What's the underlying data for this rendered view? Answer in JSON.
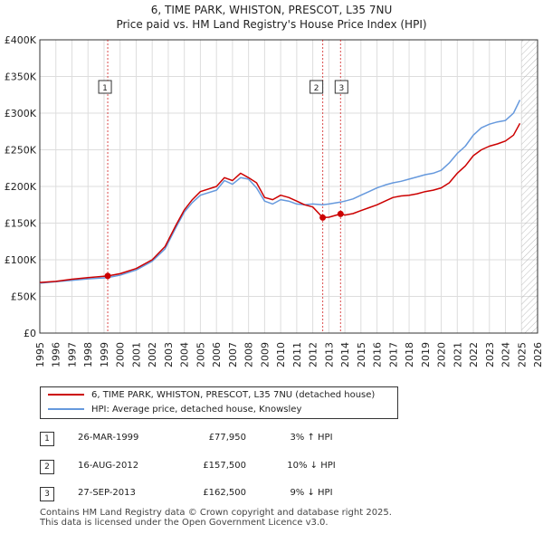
{
  "title_line1": "6, TIME PARK, WHISTON, PRESCOT, L35 7NU",
  "title_line2": "Price paid vs. HM Land Registry's House Price Index (HPI)",
  "colors": {
    "property": "#cc0000",
    "hpi": "#6699dd",
    "grid": "#dddddd",
    "axis": "#333333",
    "hatch": "#aaaaaa",
    "marker": "#cc0000"
  },
  "legend": {
    "property_label": "6, TIME PARK, WHISTON, PRESCOT, L35 7NU (detached house)",
    "hpi_label": "HPI: Average price, detached house, Knowsley"
  },
  "sales": [
    {
      "num": "1",
      "date": "26-MAR-1999",
      "price": "£77,950",
      "hpi": "3% ↑ HPI"
    },
    {
      "num": "2",
      "date": "16-AUG-2012",
      "price": "£157,500",
      "hpi": "10% ↓ HPI"
    },
    {
      "num": "3",
      "date": "27-SEP-2013",
      "price": "£162,500",
      "hpi": "9% ↓ HPI"
    }
  ],
  "footer": {
    "line1": "Contains HM Land Registry data © Crown copyright and database right 2025.",
    "line2": "This data is licensed under the Open Government Licence v3.0."
  },
  "chart_data": {
    "type": "line",
    "title": "6, TIME PARK, WHISTON, PRESCOT, L35 7NU — Price paid vs. HM Land Registry's House Price Index (HPI)",
    "xlabel": "",
    "ylabel": "",
    "xlim": [
      1995,
      2026
    ],
    "ylim": [
      0,
      400000
    ],
    "x_ticks": [
      "1995",
      "1996",
      "1997",
      "1998",
      "1999",
      "2000",
      "2001",
      "2002",
      "2003",
      "2004",
      "2005",
      "2006",
      "2007",
      "2008",
      "2009",
      "2010",
      "2011",
      "2012",
      "2013",
      "2014",
      "2015",
      "2016",
      "2017",
      "2018",
      "2019",
      "2020",
      "2021",
      "2022",
      "2023",
      "2024",
      "2025",
      "2026"
    ],
    "y_ticks": [
      {
        "value": 0,
        "label": "£0"
      },
      {
        "value": 50000,
        "label": "£50K"
      },
      {
        "value": 100000,
        "label": "£100K"
      },
      {
        "value": 150000,
        "label": "£150K"
      },
      {
        "value": 200000,
        "label": "£200K"
      },
      {
        "value": 250000,
        "label": "£250K"
      },
      {
        "value": 300000,
        "label": "£300K"
      },
      {
        "value": 350000,
        "label": "£350K"
      },
      {
        "value": 400000,
        "label": "£400K"
      }
    ],
    "grid": true,
    "hatched_after": 2025.0,
    "series": [
      {
        "name": "6, TIME PARK, WHISTON, PRESCOT, L35 7NU (detached house)",
        "color_key": "property",
        "points": [
          [
            1995.0,
            69000
          ],
          [
            1996.0,
            70500
          ],
          [
            1997.0,
            73500
          ],
          [
            1998.0,
            75500
          ],
          [
            1999.23,
            77950
          ],
          [
            2000.0,
            81000
          ],
          [
            2001.0,
            88000
          ],
          [
            2002.0,
            100000
          ],
          [
            2002.8,
            118000
          ],
          [
            2003.5,
            148000
          ],
          [
            2004.0,
            168000
          ],
          [
            2004.5,
            182000
          ],
          [
            2005.0,
            193000
          ],
          [
            2006.0,
            200000
          ],
          [
            2006.5,
            212000
          ],
          [
            2007.0,
            208000
          ],
          [
            2007.5,
            218000
          ],
          [
            2008.0,
            212000
          ],
          [
            2008.5,
            205000
          ],
          [
            2009.0,
            185000
          ],
          [
            2009.5,
            182000
          ],
          [
            2010.0,
            188000
          ],
          [
            2010.5,
            185000
          ],
          [
            2011.0,
            180000
          ],
          [
            2011.5,
            175000
          ],
          [
            2012.0,
            172000
          ],
          [
            2012.62,
            157500
          ],
          [
            2013.0,
            158000
          ],
          [
            2013.73,
            162500
          ],
          [
            2014.0,
            161000
          ],
          [
            2014.5,
            163000
          ],
          [
            2015.0,
            167000
          ],
          [
            2015.5,
            171000
          ],
          [
            2016.0,
            175000
          ],
          [
            2016.5,
            180000
          ],
          [
            2017.0,
            185000
          ],
          [
            2017.5,
            187000
          ],
          [
            2018.0,
            188000
          ],
          [
            2018.5,
            190000
          ],
          [
            2019.0,
            193000
          ],
          [
            2019.5,
            195000
          ],
          [
            2020.0,
            198000
          ],
          [
            2020.5,
            205000
          ],
          [
            2021.0,
            218000
          ],
          [
            2021.5,
            228000
          ],
          [
            2022.0,
            242000
          ],
          [
            2022.5,
            250000
          ],
          [
            2023.0,
            255000
          ],
          [
            2023.5,
            258000
          ],
          [
            2024.0,
            262000
          ],
          [
            2024.5,
            270000
          ],
          [
            2024.9,
            286000
          ]
        ]
      },
      {
        "name": "HPI: Average price, detached house, Knowsley",
        "color_key": "hpi",
        "points": [
          [
            1995.0,
            68000
          ],
          [
            1996.0,
            70000
          ],
          [
            1997.0,
            72000
          ],
          [
            1998.0,
            74000
          ],
          [
            1999.23,
            75700
          ],
          [
            2000.0,
            79000
          ],
          [
            2001.0,
            86000
          ],
          [
            2002.0,
            98000
          ],
          [
            2002.8,
            115000
          ],
          [
            2003.5,
            145000
          ],
          [
            2004.0,
            165000
          ],
          [
            2004.5,
            178000
          ],
          [
            2005.0,
            188000
          ],
          [
            2006.0,
            195000
          ],
          [
            2006.5,
            208000
          ],
          [
            2007.0,
            203000
          ],
          [
            2007.5,
            212000
          ],
          [
            2008.0,
            210000
          ],
          [
            2008.5,
            198000
          ],
          [
            2009.0,
            180000
          ],
          [
            2009.5,
            176000
          ],
          [
            2010.0,
            182000
          ],
          [
            2010.5,
            180000
          ],
          [
            2011.0,
            176000
          ],
          [
            2011.5,
            175000
          ],
          [
            2012.0,
            176000
          ],
          [
            2012.62,
            175000
          ],
          [
            2013.0,
            176000
          ],
          [
            2013.73,
            178600
          ],
          [
            2014.0,
            180000
          ],
          [
            2014.5,
            183000
          ],
          [
            2015.0,
            188000
          ],
          [
            2015.5,
            193000
          ],
          [
            2016.0,
            198000
          ],
          [
            2016.5,
            202000
          ],
          [
            2017.0,
            205000
          ],
          [
            2017.5,
            207000
          ],
          [
            2018.0,
            210000
          ],
          [
            2018.5,
            213000
          ],
          [
            2019.0,
            216000
          ],
          [
            2019.5,
            218000
          ],
          [
            2020.0,
            222000
          ],
          [
            2020.5,
            232000
          ],
          [
            2021.0,
            245000
          ],
          [
            2021.5,
            255000
          ],
          [
            2022.0,
            270000
          ],
          [
            2022.5,
            280000
          ],
          [
            2023.0,
            285000
          ],
          [
            2023.5,
            288000
          ],
          [
            2024.0,
            290000
          ],
          [
            2024.5,
            300000
          ],
          [
            2024.9,
            318000
          ]
        ]
      }
    ],
    "annotations": [
      {
        "label": "1",
        "x": 1999.23,
        "y": 77950
      },
      {
        "label": "2",
        "x": 2012.62,
        "y": 157500
      },
      {
        "label": "3",
        "x": 2013.73,
        "y": 162500
      }
    ]
  }
}
